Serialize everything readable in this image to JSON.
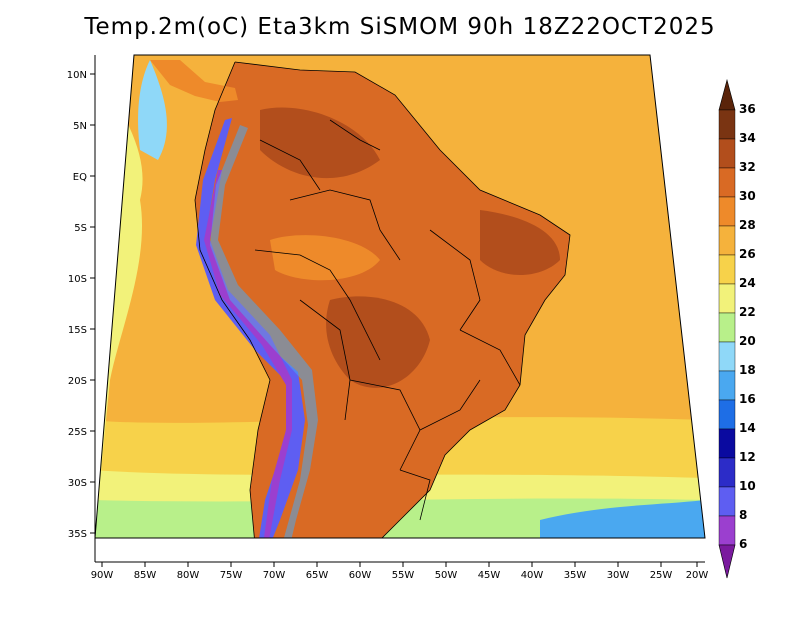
{
  "title": "Temp.2m(oC) Eta3km SiSMOM 90h 18Z22OCT2025",
  "x_ticks": [
    "90W",
    "85W",
    "80W",
    "75W",
    "70W",
    "65W",
    "60W",
    "55W",
    "50W",
    "45W",
    "40W",
    "35W",
    "30W",
    "25W",
    "20W"
  ],
  "y_ticks": [
    "10N",
    "5N",
    "EQ",
    "5S",
    "10S",
    "15S",
    "20S",
    "25S",
    "30S",
    "35S"
  ],
  "colorbar": {
    "levels": [
      "6",
      "8",
      "10",
      "12",
      "14",
      "16",
      "18",
      "20",
      "22",
      "24",
      "26",
      "28",
      "30",
      "32",
      "34",
      "36"
    ],
    "colors": [
      "#7a1a9e",
      "#9b3fcf",
      "#5e5ef2",
      "#2c2cc8",
      "#0a0aa0",
      "#1e6ee6",
      "#4aa8f0",
      "#8fd8f8",
      "#b8f08a",
      "#f2f27a",
      "#f7d24a",
      "#f5b23c",
      "#ee8a2a",
      "#d96a24",
      "#b24e1c",
      "#7a3412",
      "#5a240a"
    ],
    "min_label": "6",
    "max_label": "36"
  },
  "field_colors": {
    "ocean_warm": "#f5b23c",
    "ocean_mild": "#f7d24a",
    "ocean_cool": "#f2f27a",
    "land_hot": "#d96a24",
    "land_very_hot": "#b24e1c",
    "andes_cold": "#5e5ef2"
  }
}
